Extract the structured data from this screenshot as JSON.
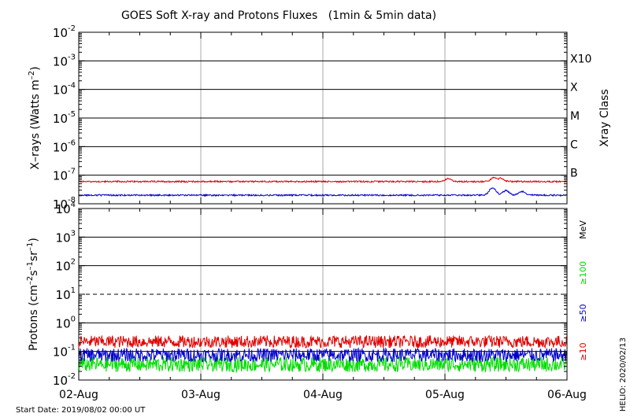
{
  "chart_data": [
    {
      "type": "line",
      "title": "GOES Soft X-ray and Protons Fluxes   (1min & 5min data)",
      "ylabel": "X-rays (Watts m⁻²)",
      "y_scale": "log",
      "ylim": [
        1e-08,
        0.01
      ],
      "y_ticks": [
        {
          "base": "10",
          "exp": "-8",
          "value": 1e-08
        },
        {
          "base": "10",
          "exp": "-7",
          "value": 1e-07
        },
        {
          "base": "10",
          "exp": "-6",
          "value": 1e-06
        },
        {
          "base": "10",
          "exp": "-5",
          "value": 1e-05
        },
        {
          "base": "10",
          "exp": "-4",
          "value": 0.0001
        },
        {
          "base": "10",
          "exp": "-3",
          "value": 0.001
        },
        {
          "base": "10",
          "exp": "-2",
          "value": 0.01
        }
      ],
      "right_axis_label": "Xray Class",
      "class_levels": [
        {
          "label": "B",
          "value": 1e-07
        },
        {
          "label": "C",
          "value": 1e-06
        },
        {
          "label": "M",
          "value": 1e-05
        },
        {
          "label": "X",
          "value": 0.0001
        },
        {
          "label": "X10",
          "value": 0.001
        }
      ],
      "grid": true,
      "series": [
        {
          "color": "#e00000",
          "base_level": 6e-08,
          "bumps": [
            {
              "day": 3.03,
              "peak": 7.5e-08
            },
            {
              "day": 3.4,
              "peak": 8e-08
            },
            {
              "day": 3.46,
              "peak": 7.5e-08
            }
          ]
        },
        {
          "color": "#0000cc",
          "base_level": 2e-08,
          "bumps": [
            {
              "day": 3.39,
              "peak": 3.6e-08
            },
            {
              "day": 3.5,
              "peak": 2.9e-08
            },
            {
              "day": 3.63,
              "peak": 2.7e-08
            }
          ]
        }
      ]
    },
    {
      "type": "line",
      "ylabel": "Protons (cm⁻²s⁻¹sr⁻¹)",
      "y_scale": "log",
      "ylim": [
        0.01,
        10000
      ],
      "y_ticks": [
        {
          "base": "10",
          "exp": "-2",
          "value": 0.01
        },
        {
          "base": "10",
          "exp": "-1",
          "value": 0.1
        },
        {
          "base": "10",
          "exp": "0",
          "value": 1
        },
        {
          "base": "10",
          "exp": "1",
          "value": 10
        },
        {
          "base": "10",
          "exp": "2",
          "value": 100
        },
        {
          "base": "10",
          "exp": "3",
          "value": 1000
        },
        {
          "base": "10",
          "exp": "4",
          "value": 10000
        }
      ],
      "threshold_value": 10,
      "unit_label": "MeV",
      "grid": true,
      "series": [
        {
          "name": "≥10",
          "color": "#e00000",
          "base_level": 0.22
        },
        {
          "name": "≥50",
          "color": "#0000cc",
          "base_level": 0.075
        },
        {
          "name": "≥100",
          "color": "#00dd00",
          "base_level": 0.035
        }
      ]
    }
  ],
  "x_axis": {
    "xlim_days": [
      0,
      4
    ],
    "ticks": [
      {
        "label": "02-Aug",
        "day": 0
      },
      {
        "label": "03-Aug",
        "day": 1
      },
      {
        "label": "04-Aug",
        "day": 2
      },
      {
        "label": "05-Aug",
        "day": 3
      },
      {
        "label": "06-Aug",
        "day": 4
      }
    ]
  },
  "start_date": "Start Date: 2019/08/02 00:00 UT",
  "stamp": "HELIO: 2020/02/13"
}
